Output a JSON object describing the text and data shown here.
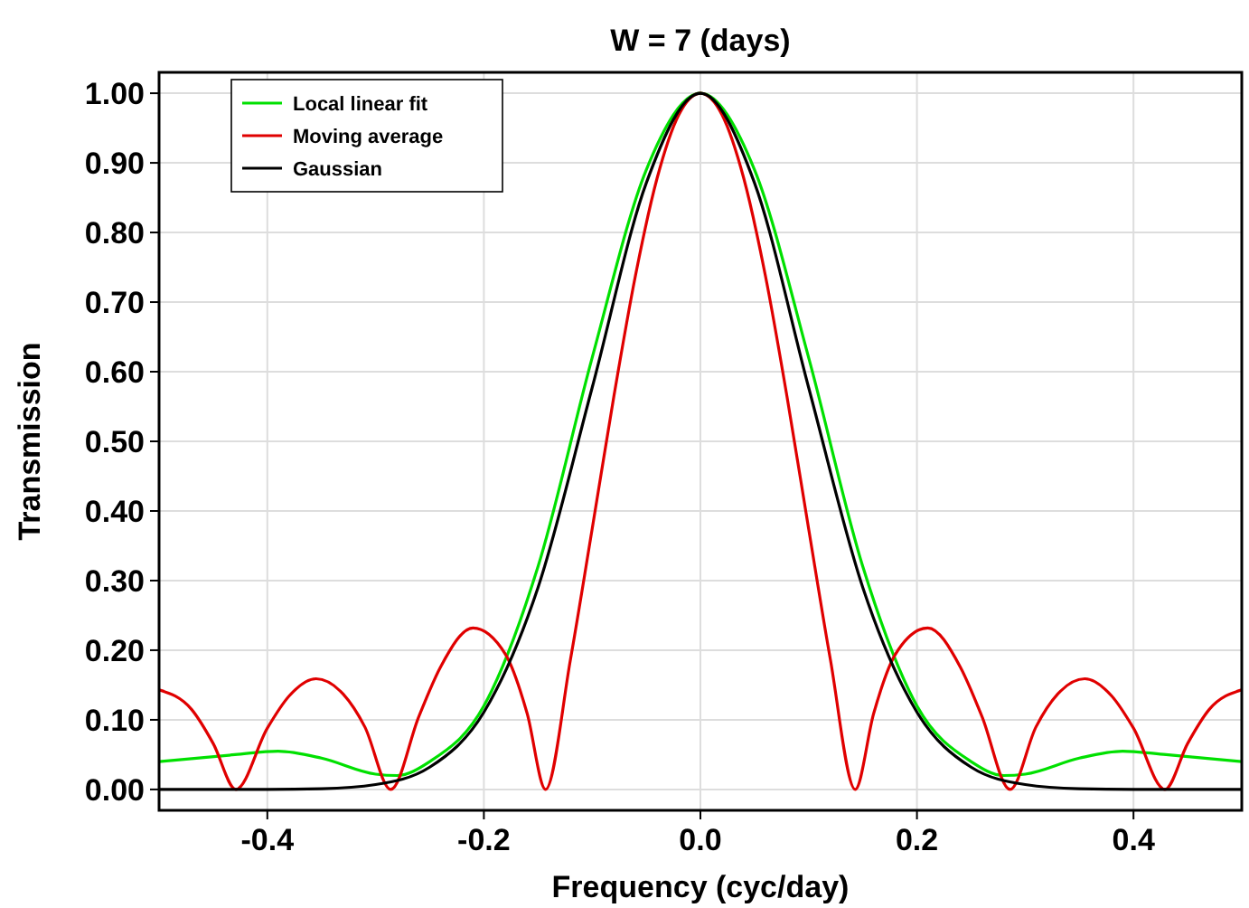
{
  "chart_data": {
    "type": "line",
    "title": "W = 7 (days)",
    "xlabel": "Frequency (cyc/day)",
    "ylabel": "Transmission",
    "xlim": [
      -0.5,
      0.5
    ],
    "ylim": [
      -0.03,
      1.03
    ],
    "xticks": [
      {
        "value": -0.4,
        "label": "-0.4"
      },
      {
        "value": -0.2,
        "label": "-0.2"
      },
      {
        "value": 0,
        "label": "0.0"
      },
      {
        "value": 0.2,
        "label": "0.2"
      },
      {
        "value": 0.4,
        "label": "0.4"
      }
    ],
    "yticks": [
      {
        "value": 0,
        "label": "0.00"
      },
      {
        "value": 0.1,
        "label": "0.10"
      },
      {
        "value": 0.2,
        "label": "0.20"
      },
      {
        "value": 0.3,
        "label": "0.30"
      },
      {
        "value": 0.4,
        "label": "0.40"
      },
      {
        "value": 0.5,
        "label": "0.50"
      },
      {
        "value": 0.6,
        "label": "0.60"
      },
      {
        "value": 0.7,
        "label": "0.70"
      },
      {
        "value": 0.8,
        "label": "0.80"
      },
      {
        "value": 0.9,
        "label": "0.90"
      },
      {
        "value": 1,
        "label": "1.00"
      }
    ],
    "grid": true,
    "legend": "top left",
    "marker": "none",
    "line_style": "solid",
    "series": [
      {
        "name": "Local linear fit",
        "color": "#00e000",
        "x": [
          -0.5,
          -0.43,
          -0.39,
          -0.35,
          -0.3,
          -0.28,
          -0.25,
          -0.2,
          -0.15,
          -0.1,
          -0.05,
          0,
          0.05,
          0.1,
          0.15,
          0.2,
          0.25,
          0.28,
          0.3,
          0.35,
          0.39,
          0.43,
          0.5
        ],
        "values": [
          0.04,
          0.05,
          0.055,
          0.045,
          0.022,
          0.02,
          0.04,
          0.12,
          0.32,
          0.62,
          0.89,
          1,
          0.89,
          0.62,
          0.32,
          0.12,
          0.04,
          0.02,
          0.022,
          0.045,
          0.055,
          0.05,
          0.04
        ]
      },
      {
        "name": "Moving average",
        "color": "#e00000",
        "x": [
          -0.5,
          -0.47,
          -0.45,
          -0.429,
          -0.4,
          -0.38,
          -0.355,
          -0.33,
          -0.31,
          -0.286,
          -0.26,
          -0.24,
          -0.21,
          -0.18,
          -0.16,
          -0.143,
          -0.12,
          -0.1,
          -0.08,
          -0.06,
          -0.04,
          -0.02,
          0,
          0.02,
          0.04,
          0.06,
          0.08,
          0.1,
          0.12,
          0.143,
          0.16,
          0.18,
          0.21,
          0.24,
          0.26,
          0.286,
          0.31,
          0.33,
          0.355,
          0.38,
          0.4,
          0.429,
          0.45,
          0.47,
          0.5
        ],
        "values": [
          0.143,
          0.115,
          0.066,
          0,
          0.088,
          0.134,
          0.159,
          0.137,
          0.09,
          0,
          0.105,
          0.176,
          0.232,
          0.194,
          0.109,
          0,
          0.187,
          0.374,
          0.564,
          0.738,
          0.878,
          0.969,
          1,
          0.969,
          0.878,
          0.738,
          0.564,
          0.374,
          0.187,
          0,
          0.109,
          0.194,
          0.232,
          0.176,
          0.105,
          0,
          0.09,
          0.137,
          0.159,
          0.134,
          0.088,
          0,
          0.066,
          0.115,
          0.143
        ]
      },
      {
        "name": "Gaussian",
        "color": "#000000",
        "x": [
          -0.5,
          -0.4,
          -0.35,
          -0.3,
          -0.25,
          -0.2,
          -0.15,
          -0.1,
          -0.05,
          0,
          0.05,
          0.1,
          0.15,
          0.2,
          0.25,
          0.3,
          0.35,
          0.4,
          0.5
        ],
        "values": [
          0,
          0,
          0.001,
          0.007,
          0.032,
          0.111,
          0.29,
          0.577,
          0.871,
          1,
          0.871,
          0.577,
          0.29,
          0.111,
          0.032,
          0.007,
          0.001,
          0,
          0
        ]
      }
    ]
  }
}
